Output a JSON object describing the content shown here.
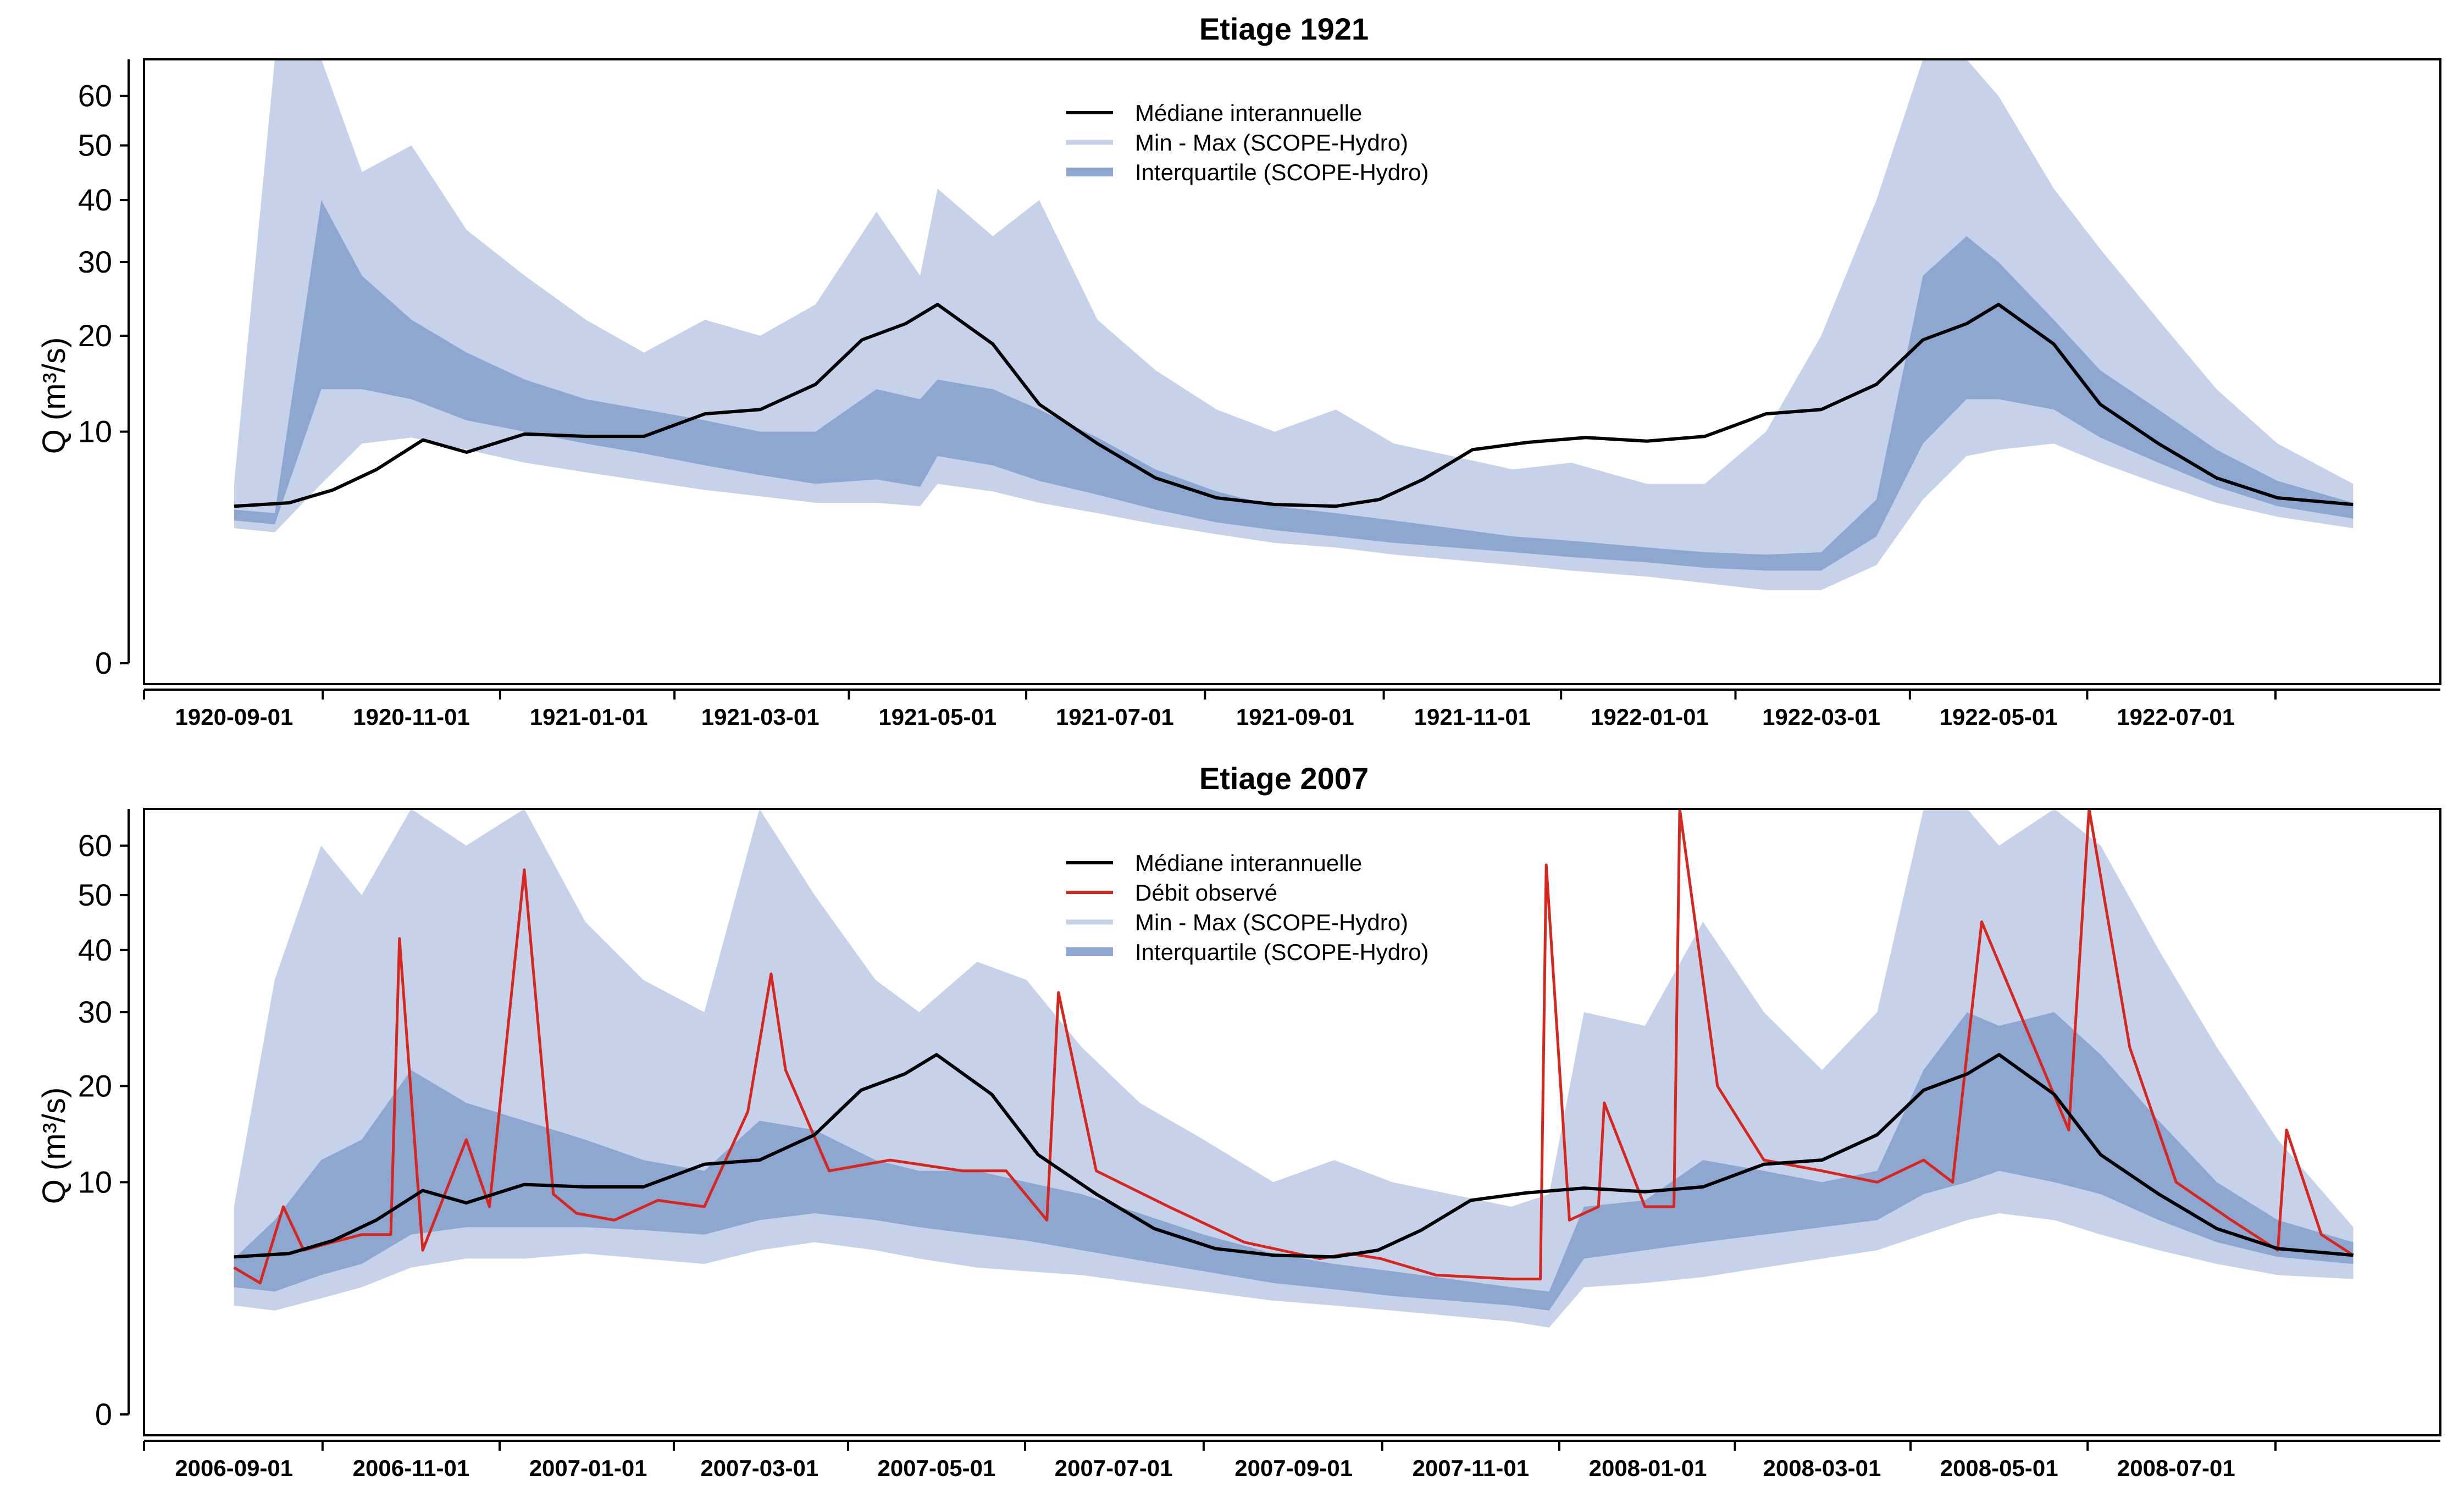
{
  "colors": {
    "median": "#000000",
    "observed": "#d7261e",
    "minmax": "#c5d2e9",
    "interquartile": "#8ea7d1",
    "axis": "#000000"
  },
  "chart_data": [
    {
      "type": "line",
      "title": "Etiage 1921",
      "ylabel": "Q (m³/s)",
      "yscale": "sqrt",
      "ylim": [
        0,
        68
      ],
      "yticks": [
        "0",
        "10",
        "20",
        "30",
        "40",
        "50",
        "60"
      ],
      "xrange": [
        "1920-08-01",
        "1922-09-30"
      ],
      "xticks": [
        "1920-09-01",
        "1920-11-01",
        "1921-01-01",
        "1921-03-01",
        "1921-05-01",
        "1921-07-01",
        "1921-09-01",
        "1921-11-01",
        "1922-01-01",
        "1922-03-01",
        "1922-05-01",
        "1922-07-01"
      ],
      "legend_position": "top-center",
      "legend": [
        {
          "label": "Médiane interannuelle",
          "kind": "median"
        },
        {
          "label": "Min - Max (SCOPE-Hydro)",
          "kind": "minmax"
        },
        {
          "label": "Interquartile (SCOPE-Hydro)",
          "kind": "interquartile"
        }
      ],
      "series": [
        {
          "name": "Médiane interannuelle",
          "x": [
            "1920-09-01",
            "1920-09-20",
            "1920-10-05",
            "1920-10-20",
            "1920-11-05",
            "1920-11-20",
            "1920-12-10",
            "1920-12-31",
            "1921-01-20",
            "1921-02-10",
            "1921-03-01",
            "1921-03-20",
            "1921-04-05",
            "1921-04-20",
            "1921-05-01",
            "1921-05-20",
            "1921-06-05",
            "1921-06-25",
            "1921-07-15",
            "1921-08-05",
            "1921-08-25",
            "1921-09-15",
            "1921-09-30",
            "1921-10-15",
            "1921-11-01",
            "1921-11-20",
            "1921-12-10",
            "1921-12-31",
            "1922-01-20",
            "1922-02-10",
            "1922-03-01",
            "1922-03-20",
            "1922-04-05",
            "1922-04-20",
            "1922-05-01",
            "1922-05-20",
            "1922-06-05",
            "1922-06-25",
            "1922-07-15",
            "1922-08-05",
            "1922-08-31"
          ],
          "values": [
            4.6,
            4.8,
            5.6,
            7.0,
            9.3,
            8.3,
            9.8,
            9.6,
            9.6,
            11.6,
            12.0,
            14.5,
            19.5,
            21.5,
            24.0,
            19.0,
            12.5,
            9.0,
            6.4,
            5.1,
            4.7,
            4.6,
            5.0,
            6.3,
            8.5,
            9.1,
            9.5,
            9.2,
            9.6,
            11.6,
            12.0,
            14.5,
            19.5,
            21.5,
            24.0,
            19.0,
            12.5,
            9.0,
            6.4,
            5.1,
            4.7
          ]
        },
        {
          "name": "Min - Max (SCOPE-Hydro)",
          "x": [
            "1920-09-01",
            "1920-09-15",
            "1920-10-01",
            "1920-10-15",
            "1920-11-01",
            "1920-11-20",
            "1920-12-10",
            "1920-12-31",
            "1921-01-20",
            "1921-02-10",
            "1921-03-01",
            "1921-03-20",
            "1921-04-10",
            "1921-04-25",
            "1921-05-01",
            "1921-05-20",
            "1921-06-05",
            "1921-06-25",
            "1921-07-15",
            "1921-08-05",
            "1921-08-25",
            "1921-09-15",
            "1921-10-05",
            "1921-10-25",
            "1921-11-15",
            "1921-12-05",
            "1921-12-31",
            "1922-01-20",
            "1922-02-10",
            "1922-03-01",
            "1922-03-20",
            "1922-04-05",
            "1922-04-20",
            "1922-05-01",
            "1922-05-20",
            "1922-06-05",
            "1922-06-25",
            "1922-07-15",
            "1922-08-05",
            "1922-08-31"
          ],
          "min": [
            3.4,
            3.2,
            6.0,
            9.0,
            9.5,
            8.5,
            7.5,
            6.8,
            6.2,
            5.6,
            5.2,
            4.8,
            4.8,
            4.6,
            6.0,
            5.5,
            4.8,
            4.2,
            3.6,
            3.1,
            2.7,
            2.5,
            2.2,
            2.0,
            1.8,
            1.6,
            1.4,
            1.2,
            1.0,
            1.0,
            1.8,
            5.0,
            8.0,
            8.5,
            9.0,
            7.5,
            6.0,
            4.8,
            4.0,
            3.4
          ],
          "max": [
            6.0,
            68,
            68,
            45,
            50,
            35,
            28,
            22,
            18,
            22,
            20,
            24,
            38,
            28,
            42,
            34,
            40,
            22,
            16,
            12,
            10,
            12,
            9,
            8,
            7,
            7.5,
            6,
            6,
            10,
            20,
            40,
            68,
            68,
            60,
            42,
            32,
            22,
            14,
            9,
            6.0
          ]
        },
        {
          "name": "Interquartile (SCOPE-Hydro)",
          "x": [
            "1920-09-01",
            "1920-09-15",
            "1920-10-01",
            "1920-10-15",
            "1920-11-01",
            "1920-11-20",
            "1920-12-10",
            "1920-12-31",
            "1921-01-20",
            "1921-02-10",
            "1921-03-01",
            "1921-03-20",
            "1921-04-10",
            "1921-04-25",
            "1921-05-01",
            "1921-05-20",
            "1921-06-05",
            "1921-06-25",
            "1921-07-15",
            "1921-08-05",
            "1921-08-25",
            "1921-09-15",
            "1921-10-05",
            "1921-10-25",
            "1921-11-15",
            "1921-12-05",
            "1921-12-31",
            "1922-01-20",
            "1922-02-10",
            "1922-03-01",
            "1922-03-20",
            "1922-04-05",
            "1922-04-20",
            "1922-05-01",
            "1922-05-20",
            "1922-06-05",
            "1922-06-25",
            "1922-07-15",
            "1922-08-05",
            "1922-08-31"
          ],
          "q1": [
            3.8,
            3.6,
            14,
            14,
            13,
            11,
            10,
            9,
            8.2,
            7.3,
            6.6,
            6.0,
            6.3,
            5.8,
            8,
            7.3,
            6.2,
            5.3,
            4.4,
            3.7,
            3.3,
            3.0,
            2.7,
            2.5,
            2.3,
            2.1,
            1.9,
            1.7,
            1.6,
            1.6,
            3.0,
            9,
            13,
            13,
            12,
            9.5,
            7.5,
            5.8,
            4.6,
            3.9
          ],
          "q3": [
            4.4,
            4.2,
            40,
            28,
            22,
            18,
            15,
            13,
            12,
            11,
            10,
            10,
            14,
            13,
            15,
            14,
            12,
            9.5,
            7,
            5.5,
            4.6,
            4.2,
            3.8,
            3.4,
            3.0,
            2.8,
            2.5,
            2.3,
            2.2,
            2.3,
            5.0,
            28,
            34,
            30,
            22,
            16,
            12,
            8.5,
            6.2,
            4.8
          ]
        }
      ]
    },
    {
      "type": "line",
      "title": "Etiage 2007",
      "ylabel": "Q (m³/s)",
      "yscale": "sqrt",
      "ylim": [
        0,
        68
      ],
      "yticks": [
        "0",
        "10",
        "20",
        "30",
        "40",
        "50",
        "60"
      ],
      "xrange": [
        "2006-08-01",
        "2008-09-30"
      ],
      "xticks": [
        "2006-09-01",
        "2006-11-01",
        "2007-01-01",
        "2007-03-01",
        "2007-05-01",
        "2007-07-01",
        "2007-09-01",
        "2007-11-01",
        "2008-01-01",
        "2008-03-01",
        "2008-05-01",
        "2008-07-01"
      ],
      "legend_position": "top-center",
      "legend": [
        {
          "label": "Médiane interannuelle",
          "kind": "median"
        },
        {
          "label": "Débit observé",
          "kind": "observed"
        },
        {
          "label": "Min - Max (SCOPE-Hydro)",
          "kind": "minmax"
        },
        {
          "label": "Interquartile (SCOPE-Hydro)",
          "kind": "interquartile"
        }
      ],
      "series": [
        {
          "name": "Médiane interannuelle",
          "x": [
            "2006-09-01",
            "2006-09-20",
            "2006-10-05",
            "2006-10-20",
            "2006-11-05",
            "2006-11-20",
            "2006-12-10",
            "2006-12-31",
            "2007-01-20",
            "2007-02-10",
            "2007-03-01",
            "2007-03-20",
            "2007-04-05",
            "2007-04-20",
            "2007-05-01",
            "2007-05-20",
            "2007-06-05",
            "2007-06-25",
            "2007-07-15",
            "2007-08-05",
            "2007-08-25",
            "2007-09-15",
            "2007-09-30",
            "2007-10-15",
            "2007-11-01",
            "2007-11-20",
            "2007-12-10",
            "2007-12-31",
            "2008-01-20",
            "2008-02-10",
            "2008-03-01",
            "2008-03-20",
            "2008-04-05",
            "2008-04-20",
            "2008-05-01",
            "2008-05-20",
            "2008-06-05",
            "2008-06-25",
            "2008-07-15",
            "2008-08-05",
            "2008-08-31"
          ],
          "values": [
            4.6,
            4.8,
            5.6,
            7.0,
            9.3,
            8.3,
            9.8,
            9.6,
            9.6,
            11.6,
            12.0,
            14.5,
            19.5,
            21.5,
            24.0,
            19.0,
            12.5,
            9.0,
            6.4,
            5.1,
            4.7,
            4.6,
            5.0,
            6.3,
            8.5,
            9.1,
            9.5,
            9.2,
            9.6,
            11.6,
            12.0,
            14.5,
            19.5,
            21.5,
            24.0,
            19.0,
            12.5,
            9.0,
            6.4,
            5.1,
            4.7
          ]
        },
        {
          "name": "Débit observé",
          "x": [
            "2006-09-01",
            "2006-09-10",
            "2006-09-18",
            "2006-09-25",
            "2006-10-05",
            "2006-10-15",
            "2006-10-25",
            "2006-10-28",
            "2006-11-05",
            "2006-11-20",
            "2006-11-28",
            "2006-12-10",
            "2006-12-20",
            "2006-12-28",
            "2007-01-10",
            "2007-01-25",
            "2007-02-10",
            "2007-02-25",
            "2007-03-05",
            "2007-03-10",
            "2007-03-25",
            "2007-04-15",
            "2007-05-10",
            "2007-05-25",
            "2007-06-08",
            "2007-06-12",
            "2007-06-25",
            "2007-07-20",
            "2007-08-15",
            "2007-09-10",
            "2007-09-20",
            "2007-10-01",
            "2007-10-20",
            "2007-11-15",
            "2007-11-25",
            "2007-11-27",
            "2007-12-05",
            "2007-12-15",
            "2007-12-17",
            "2007-12-31",
            "2008-01-10",
            "2008-01-12",
            "2008-01-25",
            "2008-02-10",
            "2008-03-01",
            "2008-03-20",
            "2008-04-05",
            "2008-04-15",
            "2008-04-25",
            "2008-05-10",
            "2008-05-25",
            "2008-06-01",
            "2008-06-15",
            "2008-07-01",
            "2008-07-20",
            "2008-08-05",
            "2008-08-08",
            "2008-08-20",
            "2008-08-31"
          ],
          "values": [
            4.0,
            3.2,
            8,
            5,
            5.5,
            6,
            6,
            42,
            5.0,
            14,
            8,
            55,
            9,
            7.5,
            7,
            8.5,
            8,
            17,
            36,
            22,
            11,
            12,
            11,
            11,
            7,
            33,
            11,
            8,
            5.5,
            4.5,
            4.8,
            4.5,
            3.6,
            3.4,
            3.4,
            56,
            7,
            8,
            18,
            8,
            8,
            68,
            20,
            12,
            11,
            10,
            12,
            10,
            45,
            28,
            15,
            68,
            25,
            10,
            7,
            5.0,
            15,
            6,
            4.7
          ]
        },
        {
          "name": "Min - Max (SCOPE-Hydro)",
          "x": [
            "2006-09-01",
            "2006-09-15",
            "2006-10-01",
            "2006-10-15",
            "2006-11-01",
            "2006-11-20",
            "2006-12-10",
            "2006-12-31",
            "2007-01-20",
            "2007-02-10",
            "2007-03-01",
            "2007-03-20",
            "2007-04-10",
            "2007-04-25",
            "2007-05-15",
            "2007-06-01",
            "2007-06-20",
            "2007-07-10",
            "2007-08-01",
            "2007-08-25",
            "2007-09-15",
            "2007-10-05",
            "2007-10-25",
            "2007-11-15",
            "2007-11-28",
            "2007-12-10",
            "2007-12-31",
            "2008-01-20",
            "2008-02-10",
            "2008-03-01",
            "2008-03-20",
            "2008-04-05",
            "2008-04-20",
            "2008-05-01",
            "2008-05-20",
            "2008-06-05",
            "2008-06-25",
            "2008-07-15",
            "2008-08-05",
            "2008-08-31"
          ],
          "min": [
            2.2,
            2.0,
            2.5,
            3.0,
            4.0,
            4.5,
            4.5,
            4.8,
            4.5,
            4.2,
            5.0,
            5.5,
            5.0,
            4.5,
            4.0,
            3.8,
            3.6,
            3.2,
            2.8,
            2.4,
            2.2,
            2.0,
            1.8,
            1.6,
            1.4,
            3.0,
            3.2,
            3.5,
            4.0,
            4.5,
            5.0,
            6.0,
            7.0,
            7.5,
            7.0,
            6.0,
            5.0,
            4.2,
            3.6,
            3.4
          ],
          "max": [
            8,
            35,
            60,
            50,
            68,
            60,
            68,
            45,
            35,
            30,
            68,
            50,
            35,
            30,
            38,
            35,
            25,
            18,
            14,
            10,
            12,
            10,
            9,
            8,
            9,
            30,
            28,
            45,
            30,
            22,
            30,
            68,
            68,
            60,
            68,
            60,
            40,
            25,
            14,
            6.5
          ]
        },
        {
          "name": "Interquartile (SCOPE-Hydro)",
          "x": [
            "2006-09-01",
            "2006-09-15",
            "2006-10-01",
            "2006-10-15",
            "2006-11-01",
            "2006-11-20",
            "2006-12-10",
            "2006-12-31",
            "2007-01-20",
            "2007-02-10",
            "2007-03-01",
            "2007-03-20",
            "2007-04-10",
            "2007-04-25",
            "2007-05-15",
            "2007-06-01",
            "2007-06-20",
            "2007-07-10",
            "2007-08-01",
            "2007-08-25",
            "2007-09-15",
            "2007-10-05",
            "2007-10-25",
            "2007-11-15",
            "2007-11-28",
            "2007-12-10",
            "2007-12-31",
            "2008-01-20",
            "2008-02-10",
            "2008-03-01",
            "2008-03-20",
            "2008-04-05",
            "2008-04-20",
            "2008-05-01",
            "2008-05-20",
            "2008-06-05",
            "2008-06-25",
            "2008-07-15",
            "2008-08-05",
            "2008-08-31"
          ],
          "q1": [
            3.0,
            2.8,
            3.6,
            4.2,
            6.0,
            6.5,
            6.5,
            6.5,
            6.3,
            6.0,
            7.0,
            7.5,
            7.0,
            6.5,
            6.0,
            5.6,
            5.0,
            4.4,
            3.8,
            3.2,
            2.9,
            2.6,
            2.4,
            2.2,
            2.0,
            4.5,
            5.0,
            5.5,
            6.0,
            6.5,
            7.0,
            9.0,
            10,
            11,
            10,
            9,
            7,
            5.5,
            4.6,
            4.2
          ],
          "q3": [
            4.5,
            7,
            12,
            14,
            22,
            18,
            16,
            14,
            12,
            11,
            16,
            15,
            12,
            11,
            11,
            10,
            9,
            7.5,
            6,
            4.8,
            4.2,
            3.8,
            3.4,
            3.0,
            2.8,
            8,
            8.5,
            12,
            11,
            10,
            11,
            22,
            30,
            28,
            30,
            24,
            16,
            10,
            7,
            5.5
          ]
        }
      ]
    }
  ]
}
